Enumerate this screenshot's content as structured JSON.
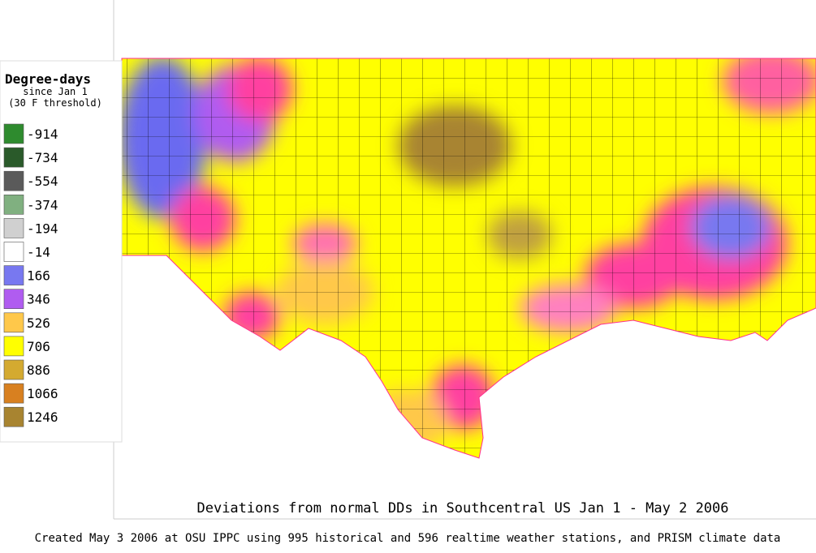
{
  "legend": {
    "title": "Degree-days",
    "subtitle": [
      "since Jan 1",
      "(30 F threshold)"
    ],
    "items": [
      {
        "value": -914,
        "color": "#2e8b2e"
      },
      {
        "value": -734,
        "color": "#2a5a2a"
      },
      {
        "value": -554,
        "color": "#5a5a5a"
      },
      {
        "value": -374,
        "color": "#80b080"
      },
      {
        "value": -194,
        "color": "#d0d0d0"
      },
      {
        "value": -14,
        "color": "#ffffff"
      },
      {
        "value": 166,
        "color": "#7878f0"
      },
      {
        "value": 346,
        "color": "#b05cf0"
      },
      {
        "value": 526,
        "color": "#ffc84a"
      },
      {
        "value": 706,
        "color": "#ffff00"
      },
      {
        "value": 886,
        "color": "#d4aa30"
      },
      {
        "value": 1066,
        "color": "#d88020"
      },
      {
        "value": 1246,
        "color": "#a88430"
      }
    ]
  },
  "caption": "Deviations from normal DDs in Southcentral US Jan 1 - May 2 2006",
  "footer": "Created May 3 2006 at OSU IPPC using 995 historical and 596 realtime weather stations, and PRISM climate data"
}
